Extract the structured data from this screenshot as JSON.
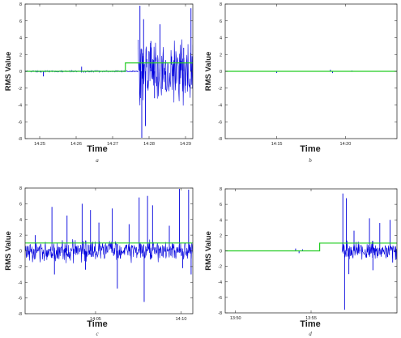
{
  "chart_data": [
    {
      "type": "line",
      "caption": "a",
      "xlabel": "Time",
      "ylabel": "RMS Value",
      "ylim": [
        -8,
        8
      ],
      "yticks": [
        -8,
        -6,
        -4,
        -2,
        0,
        2,
        4,
        6,
        8
      ],
      "xticks": [
        "14:25",
        "14:26",
        "14:27",
        "14:28",
        "14:29"
      ],
      "xlim": [
        0,
        4.6
      ],
      "xtick_pos": [
        0.4,
        1.4,
        2.4,
        3.4,
        4.4
      ],
      "grid": false,
      "series": [
        {
          "color": "#0000dd",
          "segments": [
            [
              0.0,
              3.1,
              0.12,
              0
            ],
            [
              3.1,
              4.6,
              4.8,
              1
            ]
          ],
          "spikes": [
            [
              0.5,
              -0.6
            ],
            [
              1.55,
              0.55
            ],
            [
              3.15,
              7.8
            ],
            [
              3.2,
              -7.9
            ],
            [
              3.25,
              6.2
            ],
            [
              3.3,
              -6.5
            ],
            [
              3.45,
              3.6
            ],
            [
              3.55,
              -3.2
            ],
            [
              3.7,
              5.6
            ],
            [
              3.85,
              -2.2
            ],
            [
              4.35,
              2.8
            ],
            [
              4.55,
              7.5
            ]
          ]
        },
        {
          "color": "#22cc22",
          "step": [
            [
              0.0,
              0
            ],
            [
              2.75,
              0
            ],
            [
              2.75,
              1
            ],
            [
              4.6,
              1
            ]
          ]
        }
      ]
    },
    {
      "type": "line",
      "caption": "b",
      "xlabel": "Time",
      "ylabel": "RMS Value",
      "ylim": [
        -8,
        8
      ],
      "yticks": [
        -8,
        -6,
        -4,
        -2,
        0,
        2,
        4,
        6,
        8
      ],
      "xticks": [
        "14:15",
        "14:20"
      ],
      "xlim": [
        0,
        4.0
      ],
      "xtick_pos": [
        1.2,
        2.8
      ],
      "grid": false,
      "series": [
        {
          "color": "#0000dd",
          "segments": [],
          "spikes": [
            [
              1.2,
              -0.2
            ],
            [
              2.45,
              0.2
            ],
            [
              2.5,
              -0.2
            ],
            [
              2.95,
              0.1
            ]
          ]
        },
        {
          "color": "#22cc22",
          "step": [
            [
              0.0,
              0
            ],
            [
              4.0,
              0
            ]
          ]
        }
      ]
    },
    {
      "type": "line",
      "caption": "c",
      "xlabel": "Time",
      "ylabel": "RMS Value",
      "ylim": [
        -8,
        8
      ],
      "yticks": [
        -8,
        -6,
        -4,
        -2,
        0,
        2,
        4,
        6,
        8
      ],
      "xticks": [
        "14:05",
        "14:10"
      ],
      "xlim": [
        0,
        10
      ],
      "xtick_pos": [
        4.2,
        9.3
      ],
      "grid": false,
      "series": [
        {
          "color": "#0000dd",
          "segments": [
            [
              0.0,
              10.0,
              1.6,
              2
            ]
          ],
          "spikes": [
            [
              0.6,
              2.0
            ],
            [
              1.6,
              5.6
            ],
            [
              1.75,
              -3.0
            ],
            [
              2.5,
              4.5
            ],
            [
              3.4,
              6.0
            ],
            [
              3.6,
              -2.4
            ],
            [
              3.9,
              5.2
            ],
            [
              4.4,
              3.6
            ],
            [
              5.2,
              5.4
            ],
            [
              5.5,
              -4.8
            ],
            [
              6.2,
              3.4
            ],
            [
              6.8,
              6.8
            ],
            [
              7.1,
              -6.5
            ],
            [
              7.3,
              7.0
            ],
            [
              7.6,
              5.8
            ],
            [
              8.6,
              3.2
            ],
            [
              9.2,
              7.9
            ],
            [
              9.4,
              -2.2
            ],
            [
              9.75,
              7.8
            ],
            [
              9.9,
              -3.0
            ]
          ]
        },
        {
          "color": "#22cc22",
          "step": [
            [
              0.0,
              1
            ],
            [
              10.0,
              1
            ]
          ]
        }
      ]
    },
    {
      "type": "line",
      "caption": "d",
      "xlabel": "Time",
      "ylabel": "RMS Value",
      "ylim": [
        -8,
        8
      ],
      "yticks": [
        -8,
        -6,
        -4,
        -2,
        0,
        2,
        4,
        6,
        8
      ],
      "xticks": [
        "13:50",
        "13:55"
      ],
      "xlim": [
        0,
        10
      ],
      "xtick_pos": [
        0.6,
        5.0
      ],
      "grid": false,
      "series": [
        {
          "color": "#0000dd",
          "segments": [
            [
              6.8,
              10.0,
              1.4,
              3
            ]
          ],
          "spikes": [
            [
              4.1,
              0.3
            ],
            [
              4.3,
              -0.3
            ],
            [
              4.5,
              0.2
            ],
            [
              6.85,
              7.4
            ],
            [
              6.95,
              -7.6
            ],
            [
              7.05,
              6.8
            ],
            [
              7.2,
              -3.0
            ],
            [
              7.5,
              2.6
            ],
            [
              8.4,
              4.2
            ],
            [
              8.6,
              -2.5
            ],
            [
              9.0,
              3.6
            ],
            [
              9.6,
              4.0
            ],
            [
              9.75,
              -1.5
            ]
          ]
        },
        {
          "color": "#22cc22",
          "step": [
            [
              0.0,
              0
            ],
            [
              5.5,
              0
            ],
            [
              5.5,
              1
            ],
            [
              10.0,
              1
            ]
          ]
        }
      ]
    }
  ]
}
